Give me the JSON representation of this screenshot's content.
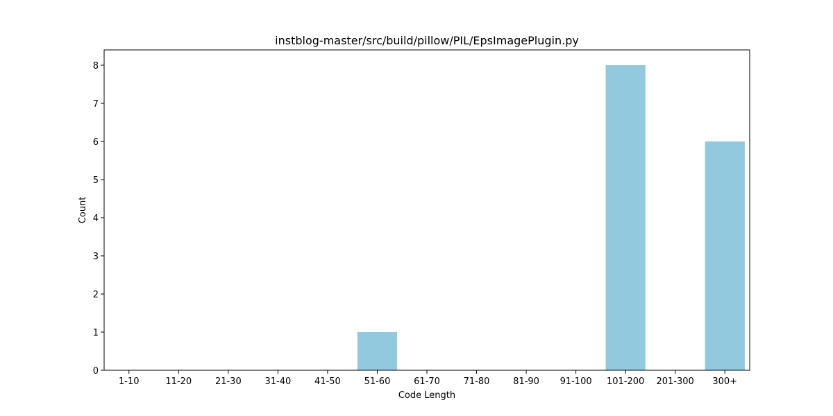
{
  "chart_data": {
    "type": "bar",
    "title": "instblog-master/src/build/pillow/PIL/EpsImagePlugin.py",
    "xlabel": "Code Length",
    "ylabel": "Count",
    "categories": [
      "1-10",
      "11-20",
      "21-30",
      "31-40",
      "41-50",
      "51-60",
      "61-70",
      "71-80",
      "81-90",
      "91-100",
      "101-200",
      "201-300",
      "300+"
    ],
    "values": [
      0,
      0,
      0,
      0,
      0,
      1,
      0,
      0,
      0,
      0,
      8,
      0,
      6
    ],
    "ylim": [
      0,
      8.4
    ],
    "yticks": [
      0,
      1,
      2,
      3,
      4,
      5,
      6,
      7,
      8
    ],
    "grid": false,
    "legend": "none",
    "bar_color": "#92c9de"
  }
}
